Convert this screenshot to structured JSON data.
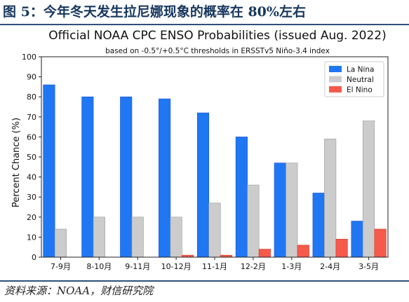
{
  "figure": {
    "title": "图 5：今年冬天发生拉尼娜现象的概率在 80%左右",
    "source": "资料来源：NOAA，财信研究院"
  },
  "chart_data": {
    "type": "bar",
    "title": "Official NOAA CPC ENSO Probabilities (issued Aug. 2022)",
    "subtitle": "based on -0.5°/+0.5°C thresholds in ERSSTv5 Niño-3.4 index",
    "xlabel": "",
    "ylabel": "Percent Chance (%)",
    "ylim": [
      0,
      100
    ],
    "yticks": [
      0,
      10,
      20,
      30,
      40,
      50,
      60,
      70,
      80,
      90,
      100
    ],
    "grid": false,
    "legend_position": "top-right",
    "categories": [
      "7-9月",
      "8-10月",
      "9-11月",
      "10-12月",
      "11-1月",
      "12-2月",
      "1-3月",
      "2-4月",
      "3-5月"
    ],
    "series": [
      {
        "name": "La Nina",
        "color": "#1f77f4",
        "values": [
          86,
          80,
          80,
          79,
          72,
          60,
          47,
          32,
          18
        ]
      },
      {
        "name": "Neutral",
        "color": "#cccccc",
        "values": [
          14,
          20,
          20,
          20,
          27,
          36,
          47,
          59,
          68
        ]
      },
      {
        "name": "El Nino",
        "color": "#f55a4a",
        "values": [
          0,
          0,
          0,
          1,
          1,
          4,
          6,
          9,
          14
        ]
      }
    ]
  }
}
